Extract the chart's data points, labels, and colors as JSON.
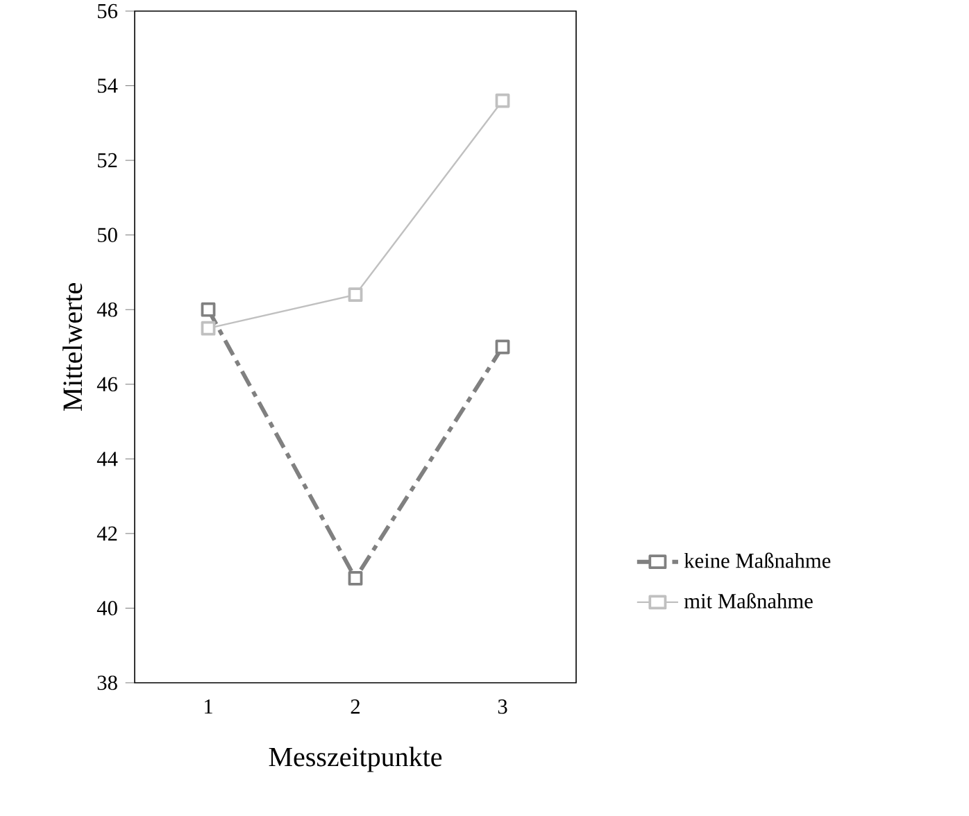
{
  "chart_data": {
    "type": "line",
    "xlabel": "Messzeitpunkte",
    "ylabel": "Mittelwerte",
    "categories": [
      "1",
      "2",
      "3"
    ],
    "series": [
      {
        "name": "keine Maßnahme",
        "color": "#808080",
        "values": [
          48.0,
          40.8,
          47.0
        ],
        "line_style": "dashed"
      },
      {
        "name": "mit Maßnahme",
        "color": "#c0c0c0",
        "values": [
          47.5,
          48.4,
          53.6
        ],
        "line_style": "solid"
      }
    ],
    "ylim": [
      38,
      56
    ],
    "yticks": [
      38,
      40,
      42,
      44,
      46,
      48,
      50,
      52,
      54,
      56
    ],
    "marker": "square",
    "legend": "right",
    "grid": false
  }
}
